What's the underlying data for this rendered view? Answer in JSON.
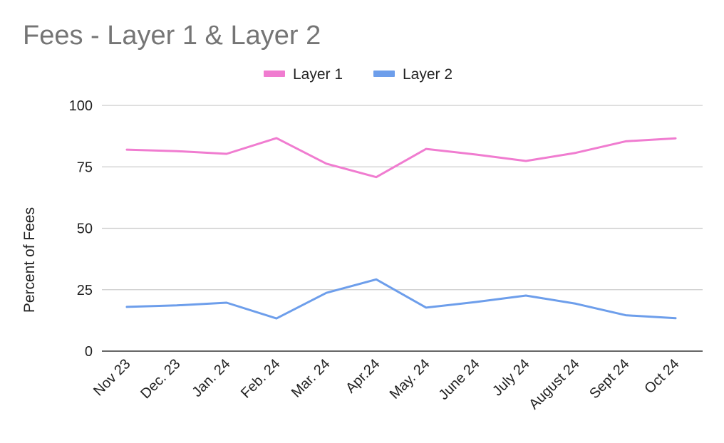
{
  "chart_data": {
    "type": "line",
    "title": "Fees - Layer 1 & Layer 2",
    "xlabel": "",
    "ylabel": "Percent of Fees",
    "ylim": [
      0,
      100
    ],
    "yticks": [
      0,
      25,
      50,
      75,
      100
    ],
    "grid": true,
    "legend_position": "top",
    "categories": [
      "Nov 23",
      "Dec. 23",
      "Jan. 24",
      "Feb. 24",
      "Mar. 24",
      "Apr.24",
      "May. 24",
      "June 24",
      "July 24",
      "August 24",
      "Sept 24",
      "Oct 24"
    ],
    "series": [
      {
        "name": "Layer 1",
        "color": "#f07cd0",
        "values": [
          82,
          81.4,
          80.3,
          86.7,
          76.3,
          70.8,
          82.3,
          80,
          77.4,
          80.7,
          85.4,
          86.6
        ]
      },
      {
        "name": "Layer 2",
        "color": "#6d9eeb",
        "values": [
          18,
          18.6,
          19.7,
          13.3,
          23.7,
          29.2,
          17.7,
          20,
          22.6,
          19.3,
          14.6,
          13.4
        ]
      }
    ]
  }
}
